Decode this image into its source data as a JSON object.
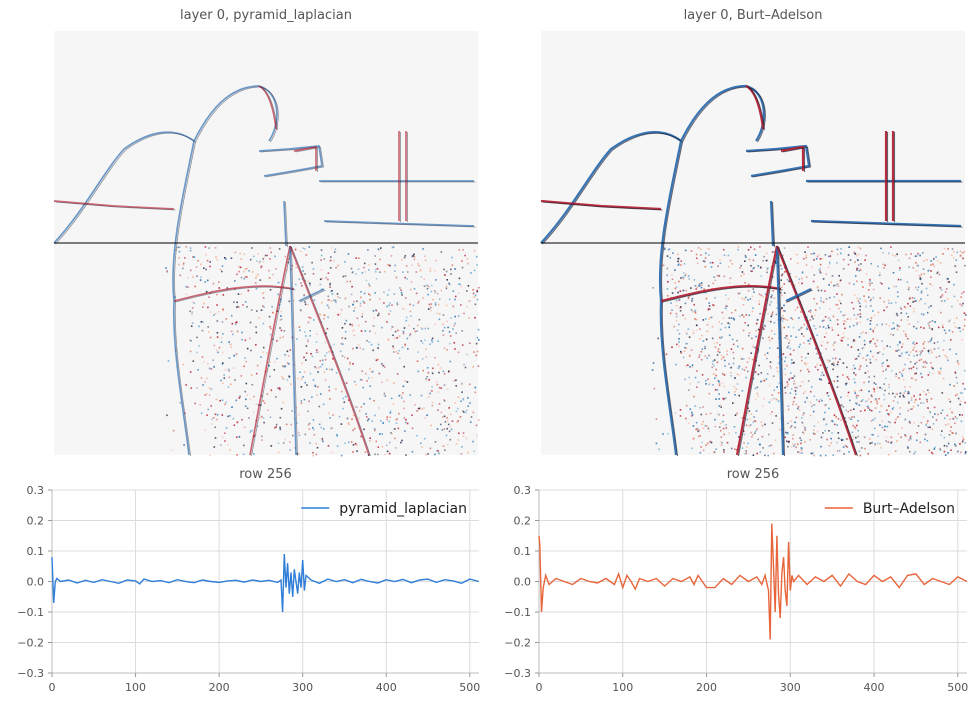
{
  "panels": [
    {
      "title": "layer 0, pyramid_laplacian",
      "intensity": 0.55
    },
    {
      "title": "layer 0, Burt–Adelson",
      "intensity": 1.0
    }
  ],
  "chart_data": [
    {
      "type": "line",
      "title": "row 256",
      "xlim": [
        0,
        511
      ],
      "ylim": [
        -0.3,
        0.3
      ],
      "xticks": [
        0,
        100,
        200,
        300,
        400,
        500
      ],
      "yticks": [
        -0.3,
        -0.2,
        -0.1,
        0.0,
        0.1,
        0.2,
        0.3
      ],
      "xtick_labels": [
        "0",
        "100",
        "200",
        "300",
        "400",
        "500"
      ],
      "ytick_labels": [
        "−0.3",
        "−0.2",
        "−0.1",
        "0.0",
        "0.1",
        "0.2",
        "0.3"
      ],
      "grid": true,
      "legend_position": "top-right",
      "series": [
        {
          "name": "pyramid_laplacian",
          "color": "#2f7ed8",
          "x": [
            0,
            2,
            4,
            6,
            10,
            20,
            30,
            40,
            50,
            60,
            70,
            80,
            90,
            100,
            105,
            110,
            120,
            130,
            140,
            150,
            160,
            170,
            180,
            190,
            200,
            210,
            220,
            230,
            240,
            250,
            260,
            270,
            274,
            276,
            278,
            280,
            282,
            284,
            286,
            288,
            290,
            292,
            294,
            296,
            298,
            300,
            302,
            304,
            310,
            320,
            330,
            340,
            350,
            360,
            370,
            380,
            390,
            400,
            410,
            420,
            430,
            440,
            450,
            460,
            470,
            480,
            490,
            500,
            511
          ],
          "y": [
            0.08,
            -0.07,
            0.0,
            0.01,
            0.0,
            0.005,
            -0.005,
            0.004,
            -0.003,
            0.006,
            0.0,
            -0.006,
            0.005,
            0.002,
            -0.008,
            0.008,
            0.0,
            0.003,
            -0.004,
            0.006,
            0.0,
            -0.004,
            0.005,
            0.0,
            -0.003,
            0.002,
            0.004,
            -0.002,
            0.005,
            0.0,
            0.004,
            -0.003,
            0.005,
            -0.1,
            0.09,
            -0.02,
            0.06,
            -0.04,
            0.03,
            -0.05,
            0.04,
            0.0,
            -0.04,
            0.03,
            -0.02,
            0.07,
            -0.03,
            0.02,
            0.005,
            -0.006,
            0.008,
            0.0,
            0.006,
            -0.004,
            0.007,
            0.0,
            -0.005,
            0.006,
            0.0,
            0.007,
            -0.004,
            0.005,
            0.008,
            -0.003,
            0.006,
            0.002,
            -0.006,
            0.008,
            0.0
          ]
        },
        {
          "name": "Burt–Adelson",
          "color": "#e8643a",
          "x": [
            0,
            1,
            3,
            5,
            8,
            12,
            20,
            30,
            40,
            50,
            60,
            70,
            80,
            90,
            95,
            100,
            105,
            110,
            115,
            120,
            130,
            140,
            150,
            160,
            170,
            180,
            185,
            190,
            200,
            210,
            220,
            230,
            240,
            250,
            260,
            266,
            270,
            274,
            276,
            278,
            280,
            282,
            284,
            286,
            288,
            290,
            292,
            294,
            296,
            298,
            300,
            302,
            304,
            310,
            320,
            330,
            340,
            350,
            360,
            370,
            380,
            390,
            400,
            410,
            420,
            430,
            440,
            450,
            460,
            470,
            480,
            490,
            500,
            511
          ],
          "y": [
            0.15,
            0.12,
            -0.1,
            -0.02,
            0.02,
            -0.01,
            0.01,
            0.0,
            -0.01,
            0.01,
            0.0,
            -0.005,
            0.01,
            -0.01,
            0.025,
            -0.02,
            0.02,
            0.0,
            -0.025,
            0.01,
            0.0,
            0.01,
            -0.015,
            0.01,
            0.0,
            0.015,
            -0.01,
            0.02,
            -0.02,
            -0.02,
            0.01,
            -0.01,
            0.02,
            0.0,
            0.015,
            -0.01,
            0.02,
            -0.03,
            -0.19,
            0.19,
            0.05,
            -0.1,
            0.15,
            -0.04,
            -0.12,
            0.03,
            0.08,
            -0.03,
            -0.08,
            0.13,
            -0.03,
            0.02,
            0.0,
            0.02,
            -0.01,
            0.015,
            0.0,
            0.02,
            -0.015,
            0.025,
            0.0,
            -0.01,
            0.02,
            0.0,
            0.015,
            -0.02,
            0.02,
            0.025,
            -0.01,
            0.01,
            0.0,
            -0.01,
            0.015,
            0.0
          ]
        }
      ]
    }
  ]
}
